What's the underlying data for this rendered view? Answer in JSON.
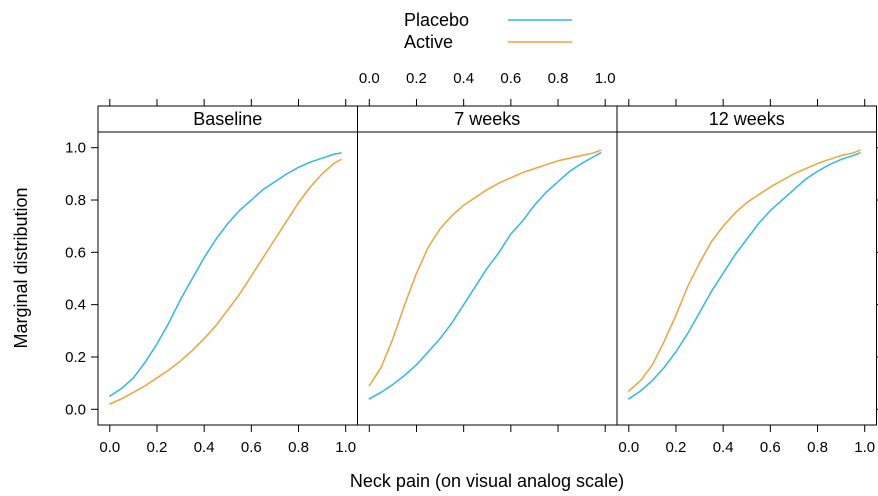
{
  "chart_data": {
    "type": "line",
    "xlabel": "Neck pain (on visual analog scale)",
    "ylabel": "Marginal distribution",
    "xlim": [
      -0.05,
      1.05
    ],
    "ylim": [
      -0.06,
      1.06
    ],
    "x_ticks": [
      "0.0",
      "0.2",
      "0.4",
      "0.6",
      "0.8",
      "1.0"
    ],
    "y_ticks": [
      "0.0",
      "0.2",
      "0.4",
      "0.6",
      "0.8",
      "1.0"
    ],
    "grid": false,
    "legend_position": "top",
    "legend": [
      {
        "name": "Placebo",
        "color": "#2fb7e8"
      },
      {
        "name": "Active",
        "color": "#f0a23a"
      }
    ],
    "panels": [
      {
        "title": "Baseline",
        "series": [
          {
            "name": "Placebo",
            "x": [
              0.0,
              0.05,
              0.1,
              0.15,
              0.2,
              0.25,
              0.3,
              0.35,
              0.4,
              0.45,
              0.5,
              0.55,
              0.6,
              0.65,
              0.7,
              0.75,
              0.8,
              0.85,
              0.9,
              0.95,
              0.98
            ],
            "y": [
              0.05,
              0.08,
              0.12,
              0.18,
              0.25,
              0.33,
              0.42,
              0.5,
              0.58,
              0.65,
              0.71,
              0.76,
              0.8,
              0.84,
              0.87,
              0.9,
              0.925,
              0.945,
              0.96,
              0.975,
              0.98
            ]
          },
          {
            "name": "Active",
            "x": [
              0.0,
              0.05,
              0.1,
              0.15,
              0.2,
              0.25,
              0.3,
              0.35,
              0.4,
              0.45,
              0.5,
              0.55,
              0.6,
              0.65,
              0.7,
              0.75,
              0.8,
              0.85,
              0.9,
              0.95,
              0.98
            ],
            "y": [
              0.02,
              0.04,
              0.065,
              0.09,
              0.12,
              0.15,
              0.185,
              0.225,
              0.27,
              0.32,
              0.38,
              0.44,
              0.51,
              0.58,
              0.65,
              0.72,
              0.79,
              0.85,
              0.9,
              0.94,
              0.955
            ]
          }
        ]
      },
      {
        "title": "7 weeks",
        "series": [
          {
            "name": "Placebo",
            "x": [
              0.0,
              0.05,
              0.1,
              0.15,
              0.2,
              0.25,
              0.3,
              0.35,
              0.4,
              0.45,
              0.5,
              0.55,
              0.6,
              0.65,
              0.7,
              0.75,
              0.8,
              0.85,
              0.9,
              0.95,
              0.98
            ],
            "y": [
              0.04,
              0.065,
              0.095,
              0.13,
              0.17,
              0.22,
              0.27,
              0.33,
              0.4,
              0.47,
              0.54,
              0.6,
              0.67,
              0.72,
              0.78,
              0.83,
              0.87,
              0.91,
              0.94,
              0.965,
              0.98
            ]
          },
          {
            "name": "Active",
            "x": [
              0.0,
              0.05,
              0.1,
              0.15,
              0.2,
              0.25,
              0.3,
              0.35,
              0.4,
              0.45,
              0.5,
              0.55,
              0.6,
              0.65,
              0.7,
              0.75,
              0.8,
              0.85,
              0.9,
              0.95,
              0.98
            ],
            "y": [
              0.09,
              0.16,
              0.27,
              0.4,
              0.52,
              0.62,
              0.69,
              0.74,
              0.78,
              0.81,
              0.84,
              0.865,
              0.885,
              0.905,
              0.92,
              0.935,
              0.95,
              0.96,
              0.97,
              0.98,
              0.99
            ]
          }
        ]
      },
      {
        "title": "12 weeks",
        "series": [
          {
            "name": "Placebo",
            "x": [
              0.0,
              0.05,
              0.1,
              0.15,
              0.2,
              0.25,
              0.3,
              0.35,
              0.4,
              0.45,
              0.5,
              0.55,
              0.6,
              0.65,
              0.7,
              0.75,
              0.8,
              0.85,
              0.9,
              0.95,
              0.98
            ],
            "y": [
              0.04,
              0.07,
              0.11,
              0.16,
              0.22,
              0.29,
              0.37,
              0.45,
              0.52,
              0.59,
              0.65,
              0.71,
              0.76,
              0.8,
              0.84,
              0.88,
              0.91,
              0.935,
              0.955,
              0.97,
              0.98
            ]
          },
          {
            "name": "Active",
            "x": [
              0.0,
              0.05,
              0.1,
              0.15,
              0.2,
              0.25,
              0.3,
              0.35,
              0.4,
              0.45,
              0.5,
              0.55,
              0.6,
              0.65,
              0.7,
              0.75,
              0.8,
              0.85,
              0.9,
              0.95,
              0.98
            ],
            "y": [
              0.07,
              0.11,
              0.17,
              0.26,
              0.36,
              0.47,
              0.56,
              0.64,
              0.7,
              0.75,
              0.79,
              0.82,
              0.85,
              0.875,
              0.9,
              0.92,
              0.94,
              0.955,
              0.97,
              0.98,
              0.99
            ]
          }
        ]
      }
    ]
  }
}
